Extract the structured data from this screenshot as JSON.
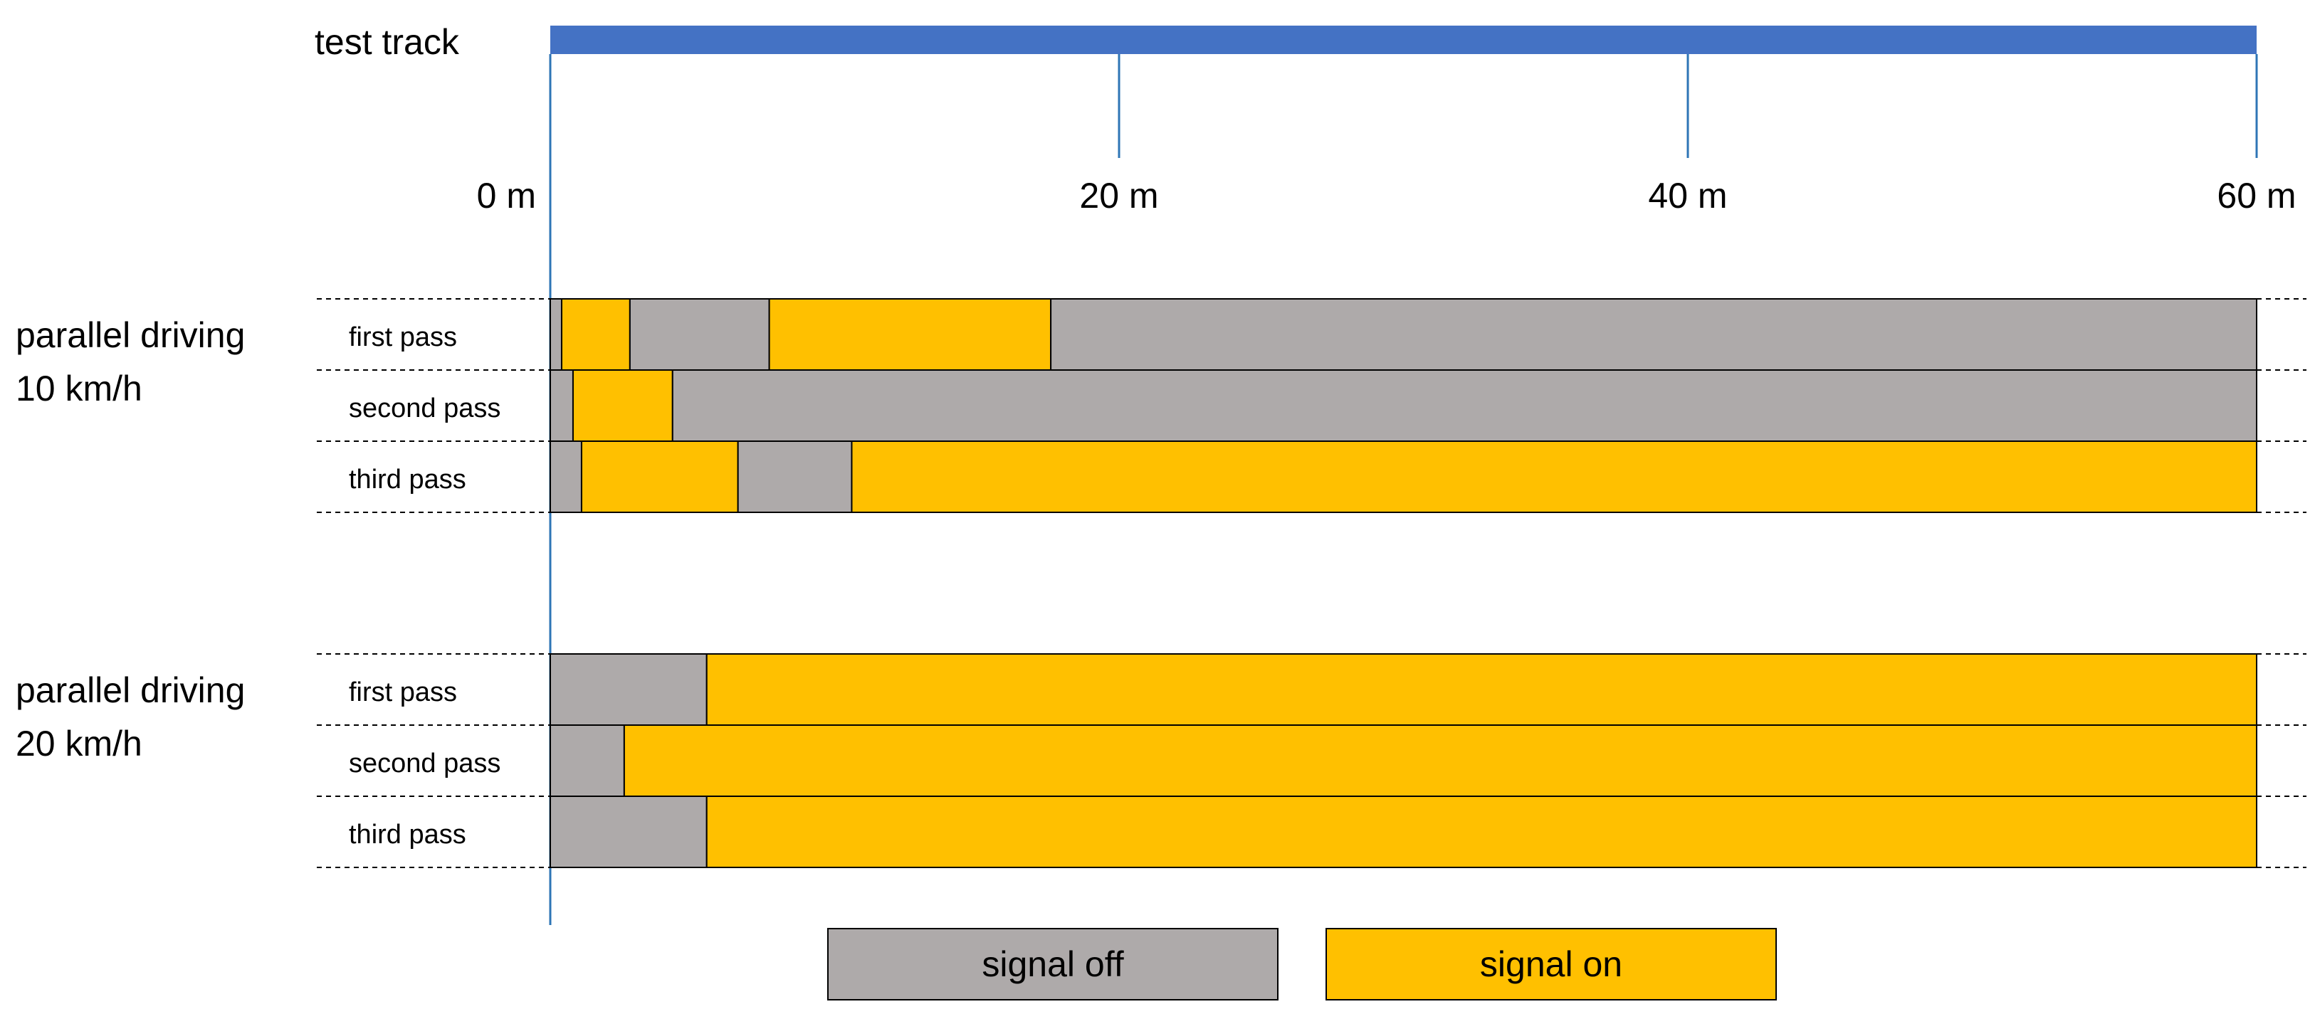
{
  "chart_data": {
    "type": "bar",
    "subtype": "horizontal-stacked-segments",
    "track_label": "test track",
    "x_unit": "m",
    "xlim": [
      0,
      60
    ],
    "x_ticks": [
      {
        "value": 0,
        "label": "0 m"
      },
      {
        "value": 20,
        "label": "20 m"
      },
      {
        "value": 40,
        "label": "40 m"
      },
      {
        "value": 60,
        "label": "60 m"
      }
    ],
    "colors": {
      "track": "#4472C4",
      "signal_off": "#AEAAAA",
      "signal_on": "#FFC000",
      "axis_line": "#2E75B6"
    },
    "legend": {
      "placement": "bottom-center",
      "items": [
        {
          "key": "off",
          "label": "signal off"
        },
        {
          "key": "on",
          "label": "signal on"
        }
      ]
    },
    "groups": [
      {
        "label_line1": "parallel driving",
        "label_line2": "10 km/h",
        "passes": [
          {
            "label": "first pass",
            "segments": [
              {
                "state": "off",
                "start": 0,
                "end": 0.4
              },
              {
                "state": "on",
                "start": 0.4,
                "end": 2.8
              },
              {
                "state": "off",
                "start": 2.8,
                "end": 7.7
              },
              {
                "state": "on",
                "start": 7.7,
                "end": 17.6
              },
              {
                "state": "off",
                "start": 17.6,
                "end": 60
              }
            ]
          },
          {
            "label": "second pass",
            "segments": [
              {
                "state": "off",
                "start": 0,
                "end": 0.8
              },
              {
                "state": "on",
                "start": 0.8,
                "end": 4.3
              },
              {
                "state": "off",
                "start": 4.3,
                "end": 60
              }
            ]
          },
          {
            "label": "third pass",
            "segments": [
              {
                "state": "off",
                "start": 0,
                "end": 1.1
              },
              {
                "state": "on",
                "start": 1.1,
                "end": 6.6
              },
              {
                "state": "off",
                "start": 6.6,
                "end": 10.6
              },
              {
                "state": "on",
                "start": 10.6,
                "end": 60
              }
            ]
          }
        ]
      },
      {
        "label_line1": "parallel driving",
        "label_line2": "20 km/h",
        "passes": [
          {
            "label": "first pass",
            "segments": [
              {
                "state": "off",
                "start": 0,
                "end": 5.5
              },
              {
                "state": "on",
                "start": 5.5,
                "end": 60
              }
            ]
          },
          {
            "label": "second pass",
            "segments": [
              {
                "state": "off",
                "start": 0,
                "end": 2.6
              },
              {
                "state": "on",
                "start": 2.6,
                "end": 60
              }
            ]
          },
          {
            "label": "third pass",
            "segments": [
              {
                "state": "off",
                "start": 0,
                "end": 5.5
              },
              {
                "state": "on",
                "start": 5.5,
                "end": 60
              }
            ]
          }
        ]
      }
    ]
  }
}
